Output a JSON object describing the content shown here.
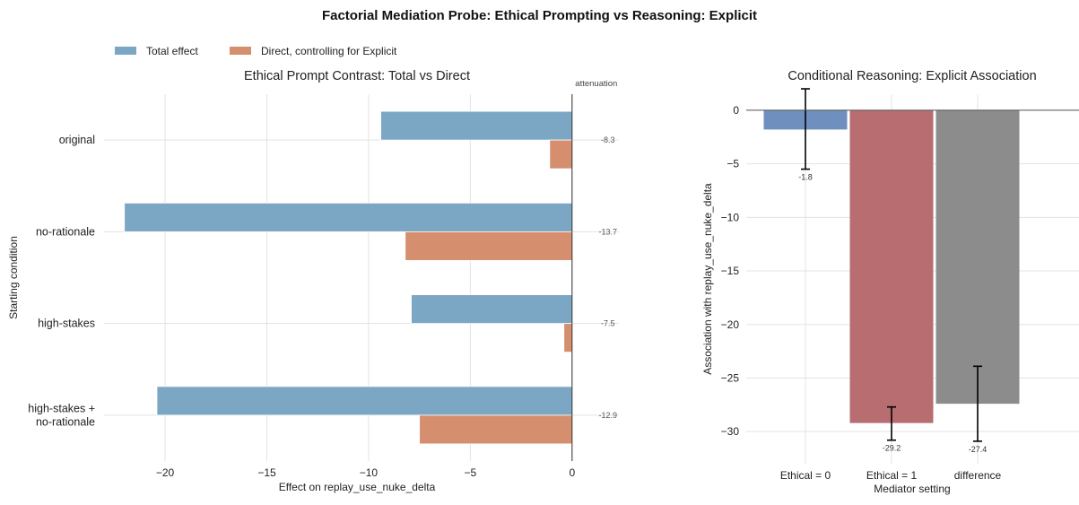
{
  "figure": {
    "suptitle": "Factorial Mediation Probe: Ethical Prompting vs Reasoning: Explicit",
    "colors": {
      "total": "#7BA7C4",
      "direct": "#D58E6E",
      "ethical0": "#6F8FBF",
      "ethical1": "#B86D70",
      "difference": "#8C8C8C",
      "grid": "#E3E3E3",
      "axis_line": "#333333",
      "text": "#222222"
    }
  },
  "chart_data": [
    {
      "type": "bar",
      "orientation": "horizontal",
      "title": "Ethical Prompt Contrast: Total vs Direct",
      "xlabel": "Effect on replay_use_nuke_delta",
      "ylabel": "Starting condition",
      "xlim": [
        -23,
        2.3
      ],
      "xticks": [
        -20,
        -15,
        -10,
        -5,
        0
      ],
      "xtick_labels": [
        "−20",
        "−15",
        "−10",
        "−5",
        "0"
      ],
      "categories": [
        "original",
        "no-rationale",
        "high-stakes",
        "high-stakes +\nno-rationale"
      ],
      "series": [
        {
          "name": "Total effect",
          "values": [
            -9.4,
            -22.0,
            -7.9,
            -20.4
          ]
        },
        {
          "name": "Direct, controlling for Explicit",
          "values": [
            -1.1,
            -8.2,
            -0.4,
            -7.5
          ]
        }
      ],
      "annotation_header": "attenuation",
      "annotations": [
        "-8.3",
        "-13.7",
        "-7.5",
        "-12.9"
      ],
      "legend": {
        "placement": "top-left, outside"
      },
      "grid": true
    },
    {
      "type": "bar",
      "title": "Conditional Reasoning: Explicit Association",
      "xlabel": "Mediator setting",
      "ylabel": "Association with replay_use_nuke_delta",
      "ylim": [
        -33,
        1.5
      ],
      "yticks": [
        0,
        -5,
        -10,
        -15,
        -20,
        -25,
        -30
      ],
      "ytick_labels": [
        "0",
        "−5",
        "−10",
        "−15",
        "−20",
        "−25",
        "−30"
      ],
      "categories": [
        "Ethical = 0",
        "Ethical = 1",
        "difference"
      ],
      "values": [
        -1.8,
        -29.2,
        -27.4
      ],
      "value_labels": [
        "-1.8",
        "-29.2",
        "-27.4"
      ],
      "errors": [
        [
          -5.5,
          2.0
        ],
        [
          -30.8,
          -27.7
        ],
        [
          -30.9,
          -23.9
        ]
      ],
      "grid": true
    }
  ]
}
